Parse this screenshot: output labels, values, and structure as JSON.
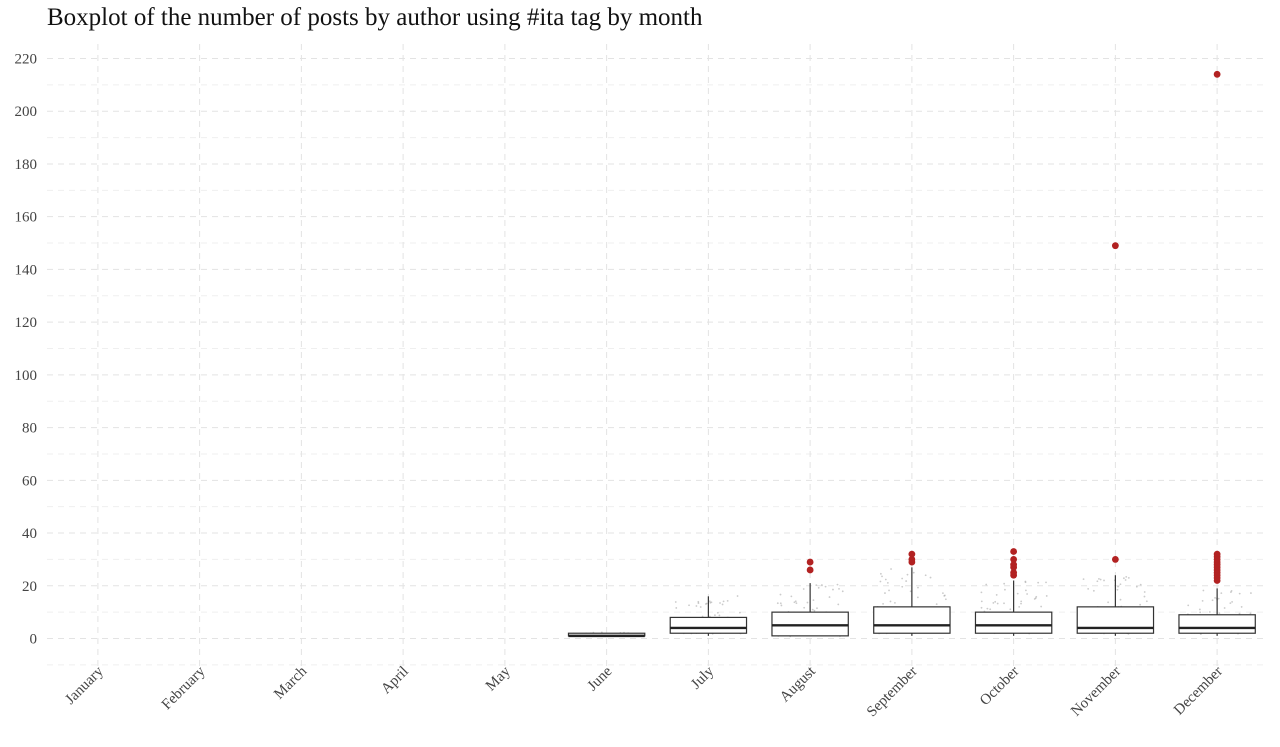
{
  "chart_data": {
    "type": "boxplot",
    "title": "Boxplot of the number of posts by author using #ita tag by month",
    "xlabel": "",
    "ylabel": "",
    "categories": [
      "January",
      "February",
      "March",
      "April",
      "May",
      "June",
      "July",
      "August",
      "September",
      "October",
      "November",
      "December"
    ],
    "y_ticks": [
      0,
      20,
      40,
      60,
      80,
      100,
      120,
      140,
      160,
      180,
      200,
      220
    ],
    "ylim": [
      -8,
      226
    ],
    "grid": true,
    "legend": "none",
    "box_color": "#333333",
    "outlier_color": "#b22222",
    "jitter_color": "#a0a0a0",
    "boxes": [
      {
        "category": "June",
        "lower_whisker": 1,
        "q1": 1,
        "median": 1,
        "q3": 2,
        "upper_whisker": 2,
        "outliers": []
      },
      {
        "category": "July",
        "lower_whisker": 1,
        "q1": 2,
        "median": 4,
        "q3": 8,
        "upper_whisker": 16,
        "outliers": []
      },
      {
        "category": "August",
        "lower_whisker": 1,
        "q1": 1,
        "median": 5,
        "q3": 10,
        "upper_whisker": 21,
        "outliers": [
          26,
          29
        ]
      },
      {
        "category": "September",
        "lower_whisker": 1,
        "q1": 2,
        "median": 5,
        "q3": 12,
        "upper_whisker": 27,
        "outliers": [
          29,
          30,
          32
        ]
      },
      {
        "category": "October",
        "lower_whisker": 1,
        "q1": 2,
        "median": 5,
        "q3": 10,
        "upper_whisker": 22,
        "outliers": [
          24,
          25,
          27,
          28,
          30,
          33
        ]
      },
      {
        "category": "November",
        "lower_whisker": 1,
        "q1": 2,
        "median": 4,
        "q3": 12,
        "upper_whisker": 24,
        "outliers": [
          30,
          149
        ]
      },
      {
        "category": "December",
        "lower_whisker": 1,
        "q1": 2,
        "median": 4,
        "q3": 9,
        "upper_whisker": 19,
        "outliers": [
          22,
          23,
          24,
          25,
          26,
          27,
          28,
          29,
          30,
          31,
          32,
          214
        ]
      }
    ]
  }
}
